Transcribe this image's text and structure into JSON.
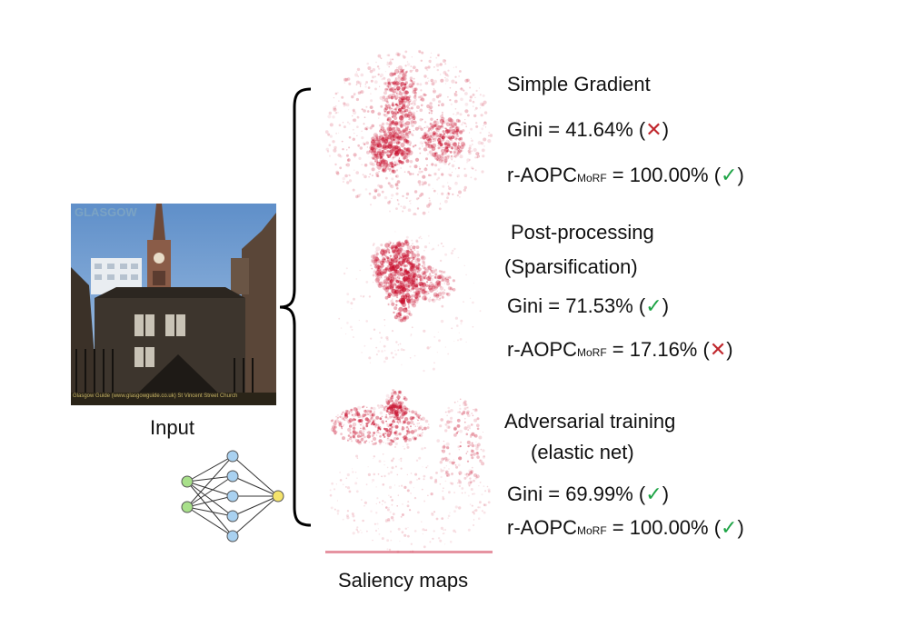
{
  "input": {
    "label": "Input",
    "watermark_top": "GLASGOW",
    "watermark_bottom": "Glasgow Guide (www.glasgowguide.co.uk) St Vincent Street Church"
  },
  "saliency": {
    "label": "Saliency maps"
  },
  "methods": [
    {
      "title_line1": "Simple Gradient",
      "title_line2": "",
      "gini_prefix": "Gini = 41.64% (",
      "gini_mark": "✕",
      "gini_mark_type": "cross",
      "aopc_prefix": "r-AOPC",
      "aopc_sub": "MoRF",
      "aopc_value": " = 100.00% (",
      "aopc_mark": "✓",
      "aopc_mark_type": "check"
    },
    {
      "title_line1": "Post-processing",
      "title_line2": "(Sparsification)",
      "gini_prefix": "Gini = 71.53% (",
      "gini_mark": "✓",
      "gini_mark_type": "check",
      "aopc_prefix": "r-AOPC",
      "aopc_sub": "MoRF",
      "aopc_value": " = 17.16% (",
      "aopc_mark": "✕",
      "aopc_mark_type": "cross"
    },
    {
      "title_line1": "Adversarial training",
      "title_line2": "(elastic net)",
      "gini_prefix": "Gini = 69.99% (",
      "gini_mark": "✓",
      "gini_mark_type": "check",
      "aopc_prefix": "r-AOPC",
      "aopc_sub": "MoRF",
      "aopc_value": " = 100.00% (",
      "aopc_mark": "✓",
      "aopc_mark_type": "check"
    }
  ],
  "colors": {
    "cross": "#c0272d",
    "check": "#1ea446",
    "saliency": "#c8102e",
    "node_green": "#a8e08a",
    "node_blue": "#a9d1f0",
    "node_yellow": "#f4e36b"
  },
  "icons": [
    "neural-network-icon",
    "bracket-icon"
  ]
}
